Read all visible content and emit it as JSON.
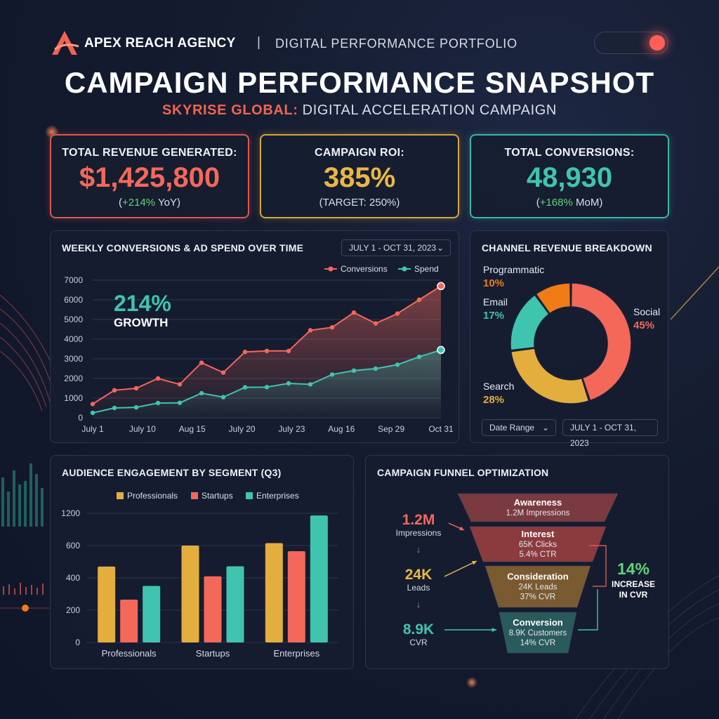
{
  "header": {
    "brand": "APEX REACH AGENCY",
    "separator": "|",
    "brand_sub": "DIGITAL PERFORMANCE PORTFOLIO",
    "title": "CAMPAIGN PERFORMANCE SNAPSHOT",
    "subtitle_highlight": "SKYRISE GLOBAL:",
    "subtitle_rest": " DIGITAL ACCELERATION CAMPAIGN",
    "logo_icon": "apex-logo-icon",
    "toggle_icon": "toggle-switch-icon"
  },
  "kpis": [
    {
      "label": "TOTAL REVENUE GENERATED:",
      "value": "$1,425,800",
      "note_prefix": "(",
      "note_change": "+214%",
      "note_suffix": " YoY)",
      "color": "#f4685a",
      "border": "#e0564a"
    },
    {
      "label": "CAMPAIGN ROI:",
      "value": "385%",
      "note_prefix": "",
      "note_change": "",
      "note_suffix": "(TARGET: 250%)",
      "color": "#e9b744",
      "border": "#d6a63a"
    },
    {
      "label": "TOTAL CONVERSIONS:",
      "value": "48,930",
      "note_prefix": "(",
      "note_change": "+168%",
      "note_suffix": " MoM)",
      "color": "#3fc4b0",
      "border": "#39b7a4"
    }
  ],
  "colors": {
    "red": "#f4685a",
    "teal": "#3fc4b0",
    "gold": "#e4ae3e",
    "orange": "#f07c18",
    "green": "#62d37a"
  },
  "line_panel": {
    "title": "WEEKLY CONVERSIONS & AD SPEND OVER TIME",
    "date_range": "JULY 1 - OCT 31, 2023",
    "dropdown_icon": "chevron-down-icon",
    "callout_value": "214%",
    "callout_label": "GROWTH"
  },
  "donut_panel": {
    "title": "CHANNEL REVENUE BREAKDOWN",
    "date_range_label": "Date Range",
    "date_range_value": "JULY 1 - OCT 31, 2023",
    "dropdown_icon": "chevron-down-icon"
  },
  "bar_panel": {
    "title": "AUDIENCE ENGAGEMENT BY SEGMENT (Q3)"
  },
  "funnel_panel": {
    "title": "CAMPAIGN FUNNEL OPTIMIZATION",
    "stages": [
      {
        "name": "Awareness",
        "lines": [
          "1.2M Impressions"
        ],
        "color": "#7a3a40"
      },
      {
        "name": "Interest",
        "lines": [
          "65K Clicks",
          "5.4% CTR"
        ],
        "color": "#8b3a3e"
      },
      {
        "name": "Consideration",
        "lines": [
          "24K Leads",
          "37% CVR"
        ],
        "color": "#7a5a30"
      },
      {
        "name": "Conversion",
        "lines": [
          "8.9K Customers",
          "14% CVR"
        ],
        "color": "#2a5a5c"
      }
    ],
    "side_metrics": [
      {
        "value": "1.2M",
        "label": "Impressions",
        "color": "#f4685a"
      },
      {
        "value": "24K",
        "label": "Leads",
        "color": "#e9b744"
      },
      {
        "value": "8.9K",
        "label": "CVR",
        "color": "#3fc4b0"
      }
    ],
    "down_arrow": "↓",
    "increase_value": "14%",
    "increase_label_1": "INCREASE",
    "increase_label_2": "IN CVR"
  },
  "chart_data": [
    {
      "type": "line",
      "title": "WEEKLY CONVERSIONS & AD SPEND OVER TIME",
      "x_tick_labels": [
        "July 1",
        "July 10",
        "Aug 15",
        "July 20",
        "July 23",
        "Aug 16",
        "Sep 29",
        "Oct 31"
      ],
      "ylim": [
        0,
        7000
      ],
      "y_ticks": [
        0,
        1000,
        2000,
        3000,
        4000,
        5000,
        6000,
        7000
      ],
      "legend_position": "top-right",
      "grid": true,
      "series": [
        {
          "name": "Conversions",
          "color": "#f4685a",
          "values": [
            700,
            1400,
            1500,
            2000,
            1700,
            2800,
            2300,
            3350,
            3400,
            3400,
            4450,
            4600,
            5350,
            4800,
            5300,
            6000,
            6700
          ]
        },
        {
          "name": "Spend",
          "color": "#3fc4b0",
          "values": [
            250,
            500,
            530,
            750,
            760,
            1250,
            1050,
            1550,
            1560,
            1750,
            1700,
            2200,
            2400,
            2500,
            2700,
            3100,
            3450
          ]
        }
      ]
    },
    {
      "type": "pie",
      "title": "CHANNEL REVENUE BREAKDOWN",
      "slices": [
        {
          "label": "Social",
          "pct_label": "45%",
          "value": 45,
          "color": "#f4685a"
        },
        {
          "label": "Search",
          "pct_label": "28%",
          "value": 28,
          "color": "#e4ae3e"
        },
        {
          "label": "Email",
          "pct_label": "17%",
          "value": 17,
          "color": "#3fc4b0"
        },
        {
          "label": "Programmatic",
          "pct_label": "10%",
          "value": 10,
          "color": "#f07c18"
        }
      ]
    },
    {
      "type": "bar",
      "title": "AUDIENCE ENGAGEMENT BY SEGMENT (Q3)",
      "categories": [
        "Professionals",
        "Startups",
        "Enterprises"
      ],
      "y_tick_labels": [
        "0",
        "200",
        "400",
        "600",
        "1200"
      ],
      "legend_position": "top",
      "series": [
        {
          "name": "Professionals",
          "color": "#e4ae3e",
          "values": [
            470,
            600,
            645
          ]
        },
        {
          "name": "Startups",
          "color": "#f4685a",
          "values": [
            265,
            410,
            565
          ]
        },
        {
          "name": "Enterprises",
          "color": "#3fc4b0",
          "values": [
            350,
            472,
            1160
          ]
        }
      ]
    }
  ]
}
